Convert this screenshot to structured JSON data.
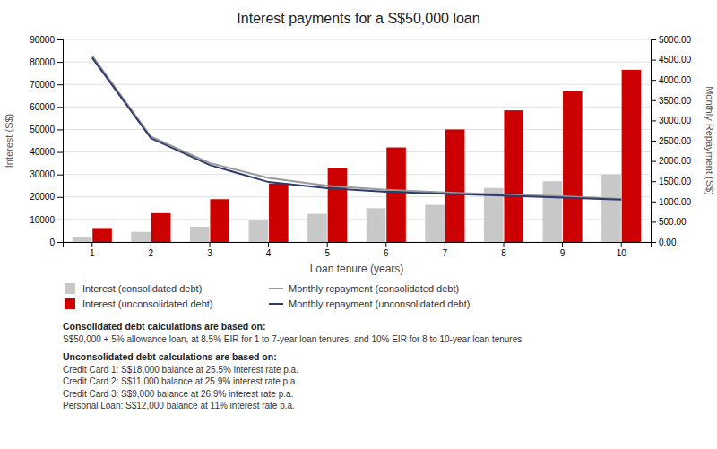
{
  "chart_data": {
    "type": "bar",
    "title": "Interest payments for a S$50,000 loan",
    "x_label": "Loan tenure (years)",
    "y_label": "Interest (S$)",
    "y2_label": "Monthly Repayment (S$)",
    "categories": [
      1,
      2,
      3,
      4,
      5,
      6,
      7,
      8,
      9,
      10
    ],
    "series": [
      {
        "name": "Interest (consolidated debt)",
        "type": "bar",
        "color": "#c8c8c8",
        "values": [
          2200,
          4500,
          6800,
          9500,
          12500,
          15000,
          16500,
          24000,
          27000,
          30000
        ]
      },
      {
        "name": "Interest (unconsolidated debt)",
        "type": "bar",
        "color": "#cc0000",
        "values": [
          6200,
          12800,
          19000,
          26000,
          33000,
          42000,
          50000,
          58500,
          67000,
          76500
        ]
      },
      {
        "name": "Monthly repayment (consolidated debt)",
        "type": "line",
        "axis": "y2",
        "color": "#999999",
        "values": [
          4600,
          2600,
          1950,
          1580,
          1390,
          1290,
          1220,
          1175,
          1130,
          1060
        ]
      },
      {
        "name": "Monthly repayment (unconsolidated debt)",
        "type": "line",
        "axis": "y2",
        "color": "#2e3a6e",
        "values": [
          4550,
          2560,
          1900,
          1480,
          1330,
          1240,
          1190,
          1145,
          1095,
          1045
        ]
      }
    ],
    "ylim": [
      0,
      90000
    ],
    "yticks": [
      0,
      10000,
      20000,
      30000,
      40000,
      50000,
      60000,
      70000,
      80000,
      90000
    ],
    "y2lim": [
      0,
      5000
    ],
    "y2ticks": [
      {
        "value": 0,
        "label": "0.00"
      },
      {
        "value": 500,
        "label": "500.00"
      },
      {
        "value": 1000,
        "label": "1000.00"
      },
      {
        "value": 1500,
        "label": "1500.00"
      },
      {
        "value": 2000,
        "label": "2000.00"
      },
      {
        "value": 2500,
        "label": "2500.00"
      },
      {
        "value": 3000,
        "label": "3000.00"
      },
      {
        "value": 3500,
        "label": "3500.00"
      },
      {
        "value": 4000,
        "label": "4000.00"
      },
      {
        "value": 4500,
        "label": "4500.00"
      },
      {
        "value": 5000,
        "label": "5000.00"
      }
    ],
    "grid": true,
    "legend": "bottom",
    "annotations": [
      {
        "heading": "Consolidated debt calculations are based on:",
        "lines": [
          "S$50,000 + 5% allowance loan, at 8.5% EIR for 1 to 7-year loan tenures, and 10% EIR for 8 to 10-year loan tenures"
        ]
      },
      {
        "heading": "Unconsolidated debt calculations are based on:",
        "lines": [
          "Credit Card 1: S$18,000 balance at 25.5% interest rate p.a.",
          "Credit Card 2: S$11,000 balance at 25.9% interest rate p.a.",
          "Credit Card 3: S$9,000 balance at 26.9% interest rate p.a.",
          "Personal Loan: S$12,000 balance at 11% interest rate p.a."
        ]
      }
    ]
  }
}
